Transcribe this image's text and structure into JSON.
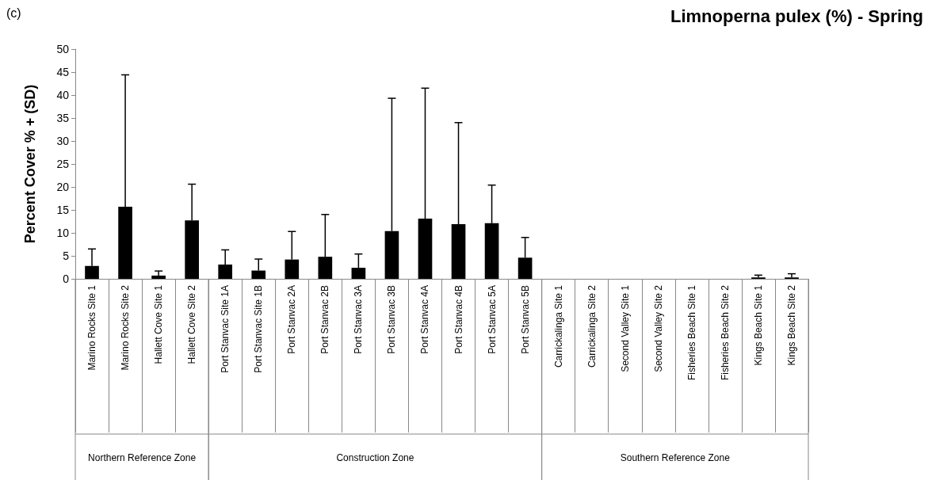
{
  "chart_data": {
    "type": "bar",
    "title": "Limnoperna pulex (%) - Spring",
    "ylabel": "Percent Cover % + (SD)",
    "annotations": [
      "(c)",
      "Northern Reference Zone",
      "Construction Zone",
      "Southern Reference Zone"
    ],
    "categories": [
      "Marino Rocks Site 1",
      "Marino Rocks Site 2",
      "Hallett Cove Site 1",
      "Hallett Cove Site 2",
      "Port Stanvac Site 1A",
      "Port Stanvac Site 1B",
      "Port Stanvac 2A",
      "Port Stanvac 2B",
      "Port Stanvac 3A",
      "Port Stanvac 3B",
      "Port Stanvac 4A",
      "Port Stanvac 4B",
      "Port Stanvac 5A",
      "Port Stanvac 5B",
      "Carrickalinga Site 1",
      "Carrickalinga Site 2",
      "Second Valley Site 1",
      "Second Valley Site 2",
      "Fisheries Beach Site 1",
      "Fisheries Beach Site 2",
      "Kings Beach Site 1",
      "Kings Beach Site 2"
    ],
    "values": [
      2.8,
      15.7,
      0.7,
      12.7,
      3.1,
      1.8,
      4.2,
      4.8,
      2.4,
      10.4,
      13.1,
      11.9,
      12.1,
      4.6,
      0,
      0,
      0,
      0,
      0,
      0,
      0.3,
      0.3
    ],
    "errors": [
      [
        2.8,
        6.5
      ],
      [
        15.7,
        44.4
      ],
      [
        0.7,
        1.7
      ],
      [
        12.7,
        20.6
      ],
      [
        3.1,
        6.3
      ],
      [
        1.8,
        4.3
      ],
      [
        4.2,
        10.3
      ],
      [
        4.8,
        14.0
      ],
      [
        2.4,
        5.4
      ],
      [
        10.4,
        39.3
      ],
      [
        13.1,
        41.5
      ],
      [
        11.9,
        34.0
      ],
      [
        12.1,
        20.4
      ],
      [
        4.6,
        9.0
      ],
      null,
      null,
      null,
      null,
      null,
      null,
      [
        0.3,
        0.8
      ],
      [
        0.3,
        1.1
      ]
    ],
    "color": "#000000",
    "ylim": [
      0,
      50
    ],
    "yticks": [
      0,
      5,
      10,
      15,
      20,
      25,
      30,
      35,
      40,
      45,
      50
    ],
    "grid": false
  }
}
